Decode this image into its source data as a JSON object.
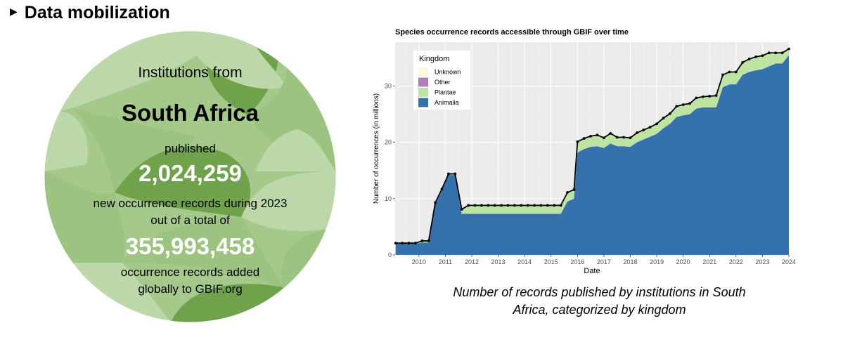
{
  "section": {
    "title": "Data mobilization",
    "bullet_icon": "triangle-bullet-icon"
  },
  "summary": {
    "line1": "Institutions from",
    "country": "South Africa",
    "line3": "published",
    "new_records": "2,024,259",
    "line5": "new occurrence records during 2023",
    "line6": "out of a total of",
    "total_records": "355,993,458",
    "line8": "occurrence records added",
    "line9": "globally to GBIF.org",
    "colors": {
      "light": "#bcd8a8",
      "mid": "#9dc381",
      "dark": "#6fa24b",
      "text_white": "#ffffff"
    }
  },
  "chart_data": {
    "type": "area",
    "title": "Species occurrence records accessible through GBIF over time",
    "xlabel": "Date",
    "ylabel": "Number of occurrences (in millions)",
    "xlim": [
      2009.1,
      2024.0
    ],
    "ylim": [
      0,
      37.8
    ],
    "x_ticks": [
      2010,
      2011,
      2012,
      2013,
      2014,
      2015,
      2016,
      2017,
      2018,
      2019,
      2020,
      2021,
      2022,
      2023,
      2024
    ],
    "y_ticks": [
      0,
      10,
      20,
      30
    ],
    "grid": true,
    "legend_position": "top-left",
    "legend": {
      "title": "Kingdom",
      "entries": [
        {
          "name": "Unknown",
          "color": "#fbf8df"
        },
        {
          "name": "Other",
          "color": "#b07fc0"
        },
        {
          "name": "Plantae",
          "color": "#bde4a3"
        },
        {
          "name": "Animalia",
          "color": "#3571ad"
        }
      ]
    },
    "x": [
      2009.12,
      2009.37,
      2009.62,
      2009.87,
      2010.12,
      2010.37,
      2010.62,
      2010.87,
      2011.12,
      2011.37,
      2011.62,
      2011.87,
      2012.12,
      2012.37,
      2012.62,
      2012.87,
      2013.12,
      2013.37,
      2013.62,
      2013.87,
      2014.12,
      2014.37,
      2014.62,
      2014.87,
      2015.12,
      2015.37,
      2015.62,
      2015.87,
      2016.0,
      2016.25,
      2016.5,
      2016.75,
      2017.0,
      2017.25,
      2017.5,
      2017.75,
      2018.0,
      2018.25,
      2018.5,
      2018.75,
      2019.0,
      2019.25,
      2019.5,
      2019.75,
      2020.0,
      2020.25,
      2020.5,
      2020.75,
      2021.0,
      2021.25,
      2021.5,
      2021.75,
      2022.0,
      2022.25,
      2022.5,
      2022.75,
      2023.0,
      2023.25,
      2023.5,
      2023.75,
      2024.0
    ],
    "series": [
      {
        "name": "Animalia",
        "values": [
          2.0,
          2.0,
          2.0,
          2.0,
          2.2,
          2.2,
          9.0,
          11.4,
          14.2,
          14.2,
          7.3,
          7.3,
          7.3,
          7.3,
          7.3,
          7.3,
          7.3,
          7.3,
          7.3,
          7.3,
          7.3,
          7.3,
          7.3,
          7.3,
          7.3,
          7.3,
          9.5,
          10.0,
          18.2,
          18.8,
          19.2,
          19.3,
          19.0,
          19.8,
          19.3,
          19.3,
          19.2,
          20.0,
          20.5,
          21.0,
          21.5,
          22.5,
          23.3,
          24.5,
          24.8,
          25.0,
          26.0,
          26.2,
          26.2,
          26.2,
          29.8,
          30.3,
          30.3,
          32.0,
          32.5,
          32.8,
          33.0,
          33.5,
          34.0,
          34.0,
          35.5
        ]
      },
      {
        "name": "Plantae",
        "values": [
          0.1,
          0.1,
          0.1,
          0.1,
          0.3,
          0.3,
          0.3,
          0.3,
          0.2,
          0.2,
          0.8,
          1.5,
          1.5,
          1.5,
          1.5,
          1.5,
          1.5,
          1.5,
          1.5,
          1.5,
          1.5,
          1.5,
          1.5,
          1.5,
          1.5,
          1.5,
          1.6,
          1.6,
          1.9,
          1.9,
          1.9,
          2.0,
          1.8,
          1.8,
          1.6,
          1.6,
          1.6,
          1.7,
          1.7,
          1.7,
          1.8,
          1.8,
          1.8,
          1.9,
          1.9,
          1.9,
          1.9,
          1.9,
          2.0,
          2.1,
          2.2,
          2.2,
          2.2,
          2.2,
          2.3,
          2.4,
          2.4,
          2.4,
          1.9,
          1.9,
          1.1
        ]
      },
      {
        "name": "Other",
        "values": [
          0,
          0,
          0,
          0,
          0,
          0,
          0,
          0,
          0,
          0,
          0,
          0,
          0,
          0,
          0,
          0,
          0,
          0,
          0,
          0,
          0,
          0,
          0,
          0,
          0,
          0,
          0,
          0,
          0,
          0,
          0,
          0,
          0,
          0,
          0,
          0,
          0,
          0,
          0,
          0,
          0,
          0,
          0,
          0,
          0,
          0,
          0,
          0,
          0,
          0,
          0,
          0,
          0,
          0,
          0,
          0,
          0,
          0,
          0,
          0,
          0
        ]
      },
      {
        "name": "Unknown",
        "values": [
          0,
          0,
          0,
          0,
          0,
          0,
          0,
          0,
          0,
          0,
          0,
          0,
          0,
          0,
          0,
          0,
          0,
          0,
          0,
          0,
          0,
          0,
          0,
          0,
          0,
          0,
          0,
          0,
          0,
          0,
          0,
          0,
          0,
          0,
          0,
          0,
          0,
          0,
          0,
          0,
          0,
          0,
          0,
          0,
          0,
          0,
          0,
          0,
          0,
          0,
          0,
          0,
          0,
          0,
          0,
          0,
          0,
          0,
          0,
          0,
          0
        ]
      }
    ],
    "total_line": {
      "color": "#000000",
      "marker": "circle"
    }
  },
  "caption": {
    "line1": "Number of records published by institutions in South",
    "line2": "Africa, categorized by kingdom"
  }
}
